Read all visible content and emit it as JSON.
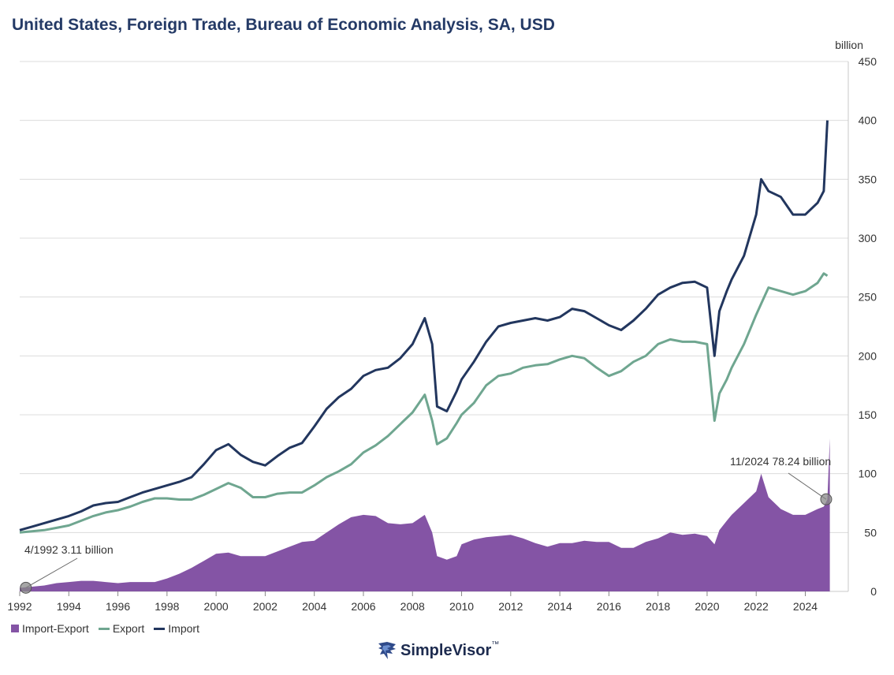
{
  "colors": {
    "import": "#22365e",
    "export": "#6fa690",
    "diff": "#8454a5",
    "grid": "#dcdcdc",
    "title": "#243a66"
  },
  "chart_data": {
    "type": "line",
    "title": "United States, Foreign Trade, Bureau of Economic Analysis, SA, USD",
    "unit_label": "billion",
    "x_ticks": [
      "1992",
      "1994",
      "1996",
      "1998",
      "2000",
      "2002",
      "2004",
      "2006",
      "2008",
      "2010",
      "2012",
      "2014",
      "2016",
      "2018",
      "2020",
      "2022",
      "2024"
    ],
    "y_ticks": [
      "0",
      "50",
      "100",
      "150",
      "200",
      "250",
      "300",
      "350",
      "400",
      "450"
    ],
    "xlim": [
      1992.0,
      2025.75
    ],
    "ylim": [
      0,
      450
    ],
    "y_axis_position": "right",
    "grid": true,
    "legend_position": "bottom-left",
    "series": [
      {
        "name": "Import",
        "type": "line",
        "x": [
          1992.0,
          1992.5,
          1993.0,
          1993.5,
          1994.0,
          1994.5,
          1995.0,
          1995.5,
          1996.0,
          1996.5,
          1997.0,
          1997.5,
          1998.0,
          1998.5,
          1999.0,
          1999.5,
          2000.0,
          2000.5,
          2001.0,
          2001.5,
          2002.0,
          2002.5,
          2003.0,
          2003.5,
          2004.0,
          2004.5,
          2005.0,
          2005.5,
          2006.0,
          2006.5,
          2007.0,
          2007.5,
          2008.0,
          2008.5,
          2008.8,
          2009.0,
          2009.4,
          2009.8,
          2010.0,
          2010.5,
          2011.0,
          2011.5,
          2012.0,
          2012.5,
          2013.0,
          2013.5,
          2014.0,
          2014.5,
          2015.0,
          2015.5,
          2016.0,
          2016.5,
          2017.0,
          2017.5,
          2018.0,
          2018.5,
          2019.0,
          2019.5,
          2020.0,
          2020.3,
          2020.5,
          2020.8,
          2021.0,
          2021.5,
          2022.0,
          2022.2,
          2022.5,
          2023.0,
          2023.5,
          2024.0,
          2024.5,
          2024.75,
          2024.9
        ],
        "y": [
          52,
          55,
          58,
          61,
          64,
          68,
          73,
          75,
          76,
          80,
          84,
          87,
          90,
          93,
          97,
          108,
          120,
          125,
          116,
          110,
          107,
          115,
          122,
          126,
          140,
          155,
          165,
          172,
          183,
          188,
          190,
          198,
          210,
          232,
          210,
          157,
          153,
          170,
          180,
          195,
          212,
          225,
          228,
          230,
          232,
          230,
          233,
          240,
          238,
          232,
          226,
          222,
          230,
          240,
          252,
          258,
          262,
          263,
          258,
          200,
          238,
          255,
          265,
          285,
          320,
          350,
          340,
          335,
          320,
          320,
          330,
          340,
          400
        ]
      },
      {
        "name": "Export",
        "type": "line",
        "x": [
          1992.0,
          1992.5,
          1993.0,
          1993.5,
          1994.0,
          1994.5,
          1995.0,
          1995.5,
          1996.0,
          1996.5,
          1997.0,
          1997.5,
          1998.0,
          1998.5,
          1999.0,
          1999.5,
          2000.0,
          2000.5,
          2001.0,
          2001.5,
          2002.0,
          2002.5,
          2003.0,
          2003.5,
          2004.0,
          2004.5,
          2005.0,
          2005.5,
          2006.0,
          2006.5,
          2007.0,
          2007.5,
          2008.0,
          2008.5,
          2008.8,
          2009.0,
          2009.4,
          2009.8,
          2010.0,
          2010.5,
          2011.0,
          2011.5,
          2012.0,
          2012.5,
          2013.0,
          2013.5,
          2014.0,
          2014.5,
          2015.0,
          2015.5,
          2016.0,
          2016.5,
          2017.0,
          2017.5,
          2018.0,
          2018.5,
          2019.0,
          2019.5,
          2020.0,
          2020.3,
          2020.5,
          2020.8,
          2021.0,
          2021.5,
          2022.0,
          2022.5,
          2023.0,
          2023.5,
          2024.0,
          2024.5,
          2024.75,
          2024.9
        ],
        "y": [
          50,
          51,
          52,
          54,
          56,
          60,
          64,
          67,
          69,
          72,
          76,
          79,
          79,
          78,
          78,
          82,
          87,
          92,
          88,
          80,
          80,
          83,
          84,
          84,
          90,
          97,
          102,
          108,
          118,
          124,
          132,
          142,
          152,
          167,
          145,
          125,
          130,
          143,
          150,
          160,
          175,
          183,
          185,
          190,
          192,
          193,
          197,
          200,
          198,
          190,
          183,
          187,
          195,
          200,
          210,
          214,
          212,
          212,
          210,
          145,
          168,
          180,
          190,
          210,
          235,
          258,
          255,
          252,
          255,
          262,
          270,
          268
        ]
      },
      {
        "name": "Import-Export",
        "type": "area",
        "x": [
          1992.0,
          1992.5,
          1993.0,
          1993.5,
          1994.0,
          1994.5,
          1995.0,
          1995.5,
          1996.0,
          1996.5,
          1997.0,
          1997.5,
          1998.0,
          1998.5,
          1999.0,
          1999.5,
          2000.0,
          2000.5,
          2001.0,
          2001.5,
          2002.0,
          2002.5,
          2003.0,
          2003.5,
          2004.0,
          2004.5,
          2005.0,
          2005.5,
          2006.0,
          2006.5,
          2007.0,
          2007.5,
          2008.0,
          2008.5,
          2008.8,
          2009.0,
          2009.4,
          2009.8,
          2010.0,
          2010.5,
          2011.0,
          2011.5,
          2012.0,
          2012.5,
          2013.0,
          2013.5,
          2014.0,
          2014.5,
          2015.0,
          2015.5,
          2016.0,
          2016.5,
          2017.0,
          2017.5,
          2018.0,
          2018.5,
          2019.0,
          2019.5,
          2020.0,
          2020.3,
          2020.5,
          2020.8,
          2021.0,
          2021.5,
          2022.0,
          2022.2,
          2022.5,
          2023.0,
          2023.5,
          2024.0,
          2024.5,
          2024.75,
          2024.9,
          2025.0
        ],
        "y": [
          3,
          4,
          5,
          7,
          8,
          9,
          9,
          8,
          7,
          8,
          8,
          8,
          11,
          15,
          20,
          26,
          32,
          33,
          30,
          30,
          30,
          34,
          38,
          42,
          43,
          50,
          57,
          63,
          65,
          64,
          58,
          57,
          58,
          65,
          50,
          30,
          27,
          30,
          40,
          44,
          46,
          47,
          48,
          45,
          41,
          38,
          41,
          41,
          43,
          42,
          42,
          37,
          37,
          42,
          45,
          50,
          48,
          49,
          47,
          40,
          52,
          60,
          65,
          75,
          85,
          100,
          80,
          70,
          65,
          65,
          70,
          72,
          78,
          130
        ]
      }
    ],
    "annotations": [
      {
        "label": "4/1992 3.11 billion",
        "x": 1992.25,
        "y": 3.11
      },
      {
        "label": "11/2024 78.24 billion",
        "x": 2024.85,
        "y": 78.24
      }
    ]
  },
  "legend": [
    {
      "label": "Import-Export",
      "swatch": "square",
      "color_key": "diff"
    },
    {
      "label": "Export",
      "swatch": "line",
      "color_key": "export"
    },
    {
      "label": "Import",
      "swatch": "line",
      "color_key": "import"
    }
  ],
  "brand": {
    "name": "SimpleVisor",
    "trademark": "™"
  }
}
